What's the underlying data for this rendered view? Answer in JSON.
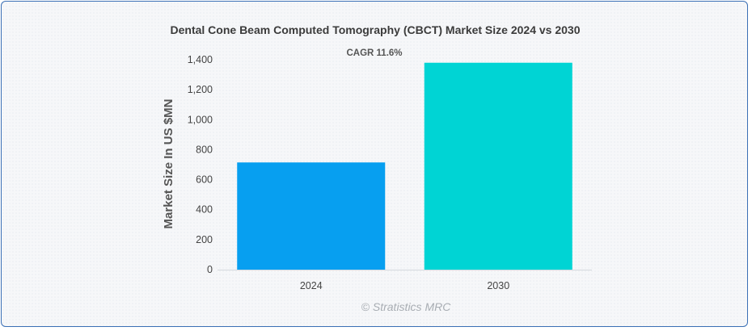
{
  "chart_data": {
    "type": "bar",
    "title": "Dental Cone Beam Computed Tomography (CBCT) Market Size 2024 vs 2030",
    "categories": [
      "2024",
      "2030"
    ],
    "values": [
      715,
      1380
    ],
    "colors": [
      "#079ff0",
      "#00d4d4"
    ],
    "xlabel": "",
    "ylabel": "Market Size In US $MN",
    "ylim": [
      0,
      1400
    ],
    "yticks": [
      0,
      200,
      400,
      600,
      800,
      1000,
      1200,
      1400
    ],
    "ytick_labels": [
      "0",
      "200",
      "400",
      "600",
      "800",
      "1,000",
      "1,200",
      "1,400"
    ],
    "annotation": "CAGR 11.6%",
    "grid": false,
    "legend": "none"
  },
  "watermark": "© Stratistics MRC"
}
